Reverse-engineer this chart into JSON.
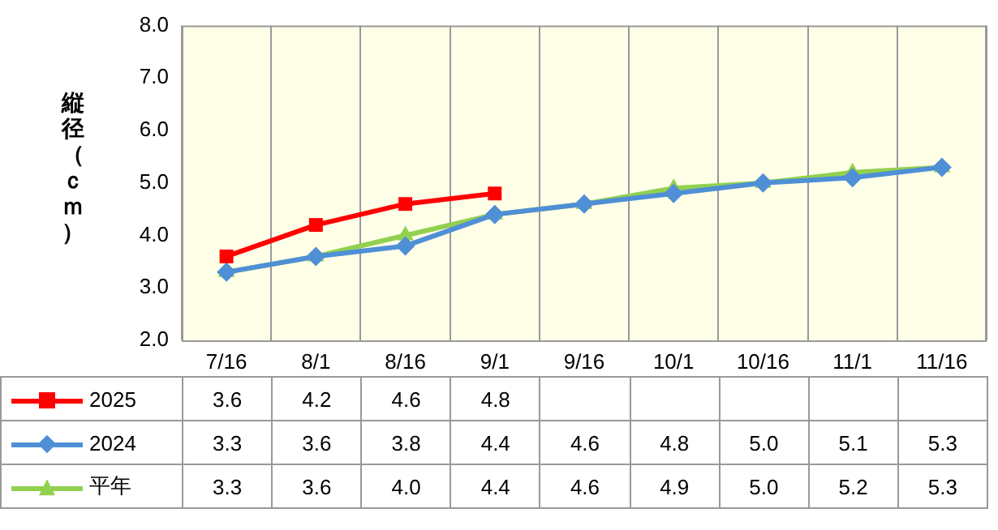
{
  "chart_data": {
    "type": "line",
    "ylabel": "縦径（ｃｍ）",
    "categories": [
      "7/16",
      "8/1",
      "8/16",
      "9/1",
      "9/16",
      "10/1",
      "10/16",
      "11/1",
      "11/16"
    ],
    "series": [
      {
        "name": "2025",
        "color": "#ff0000",
        "marker": "square",
        "values": [
          3.6,
          4.2,
          4.6,
          4.8,
          null,
          null,
          null,
          null,
          null
        ],
        "value_labels": [
          "3.6",
          "4.2",
          "4.6",
          "4.8",
          null,
          null,
          null,
          null,
          null
        ]
      },
      {
        "name": "2024",
        "color": "#4f8fd6",
        "marker": "diamond",
        "values": [
          3.3,
          3.6,
          3.8,
          4.4,
          4.6,
          4.8,
          5.0,
          5.1,
          5.3
        ],
        "value_labels": [
          "3.3",
          "3.6",
          "3.8",
          "4.4",
          "4.6",
          "4.8",
          "5.0",
          "5.1",
          "5.3"
        ]
      },
      {
        "name": "平年",
        "color": "#92d050",
        "marker": "triangle",
        "values": [
          3.3,
          3.6,
          4.0,
          4.4,
          4.6,
          4.9,
          5.0,
          5.2,
          5.3
        ],
        "value_labels": [
          "3.3",
          "3.6",
          "4.0",
          "4.4",
          "4.6",
          "4.9",
          "5.0",
          "5.2",
          "5.3"
        ]
      }
    ],
    "ylim": [
      2,
      8
    ],
    "yticks": [
      {
        "value": 2,
        "label": "2.0"
      },
      {
        "value": 3,
        "label": "3.0"
      },
      {
        "value": 4,
        "label": "4.0"
      },
      {
        "value": 5,
        "label": "5.0"
      },
      {
        "value": 6,
        "label": "6.0"
      },
      {
        "value": 7,
        "label": "7.0"
      },
      {
        "value": 8,
        "label": "8.0"
      }
    ],
    "grid": "x",
    "legend": "bottom",
    "line_style": "solid"
  }
}
